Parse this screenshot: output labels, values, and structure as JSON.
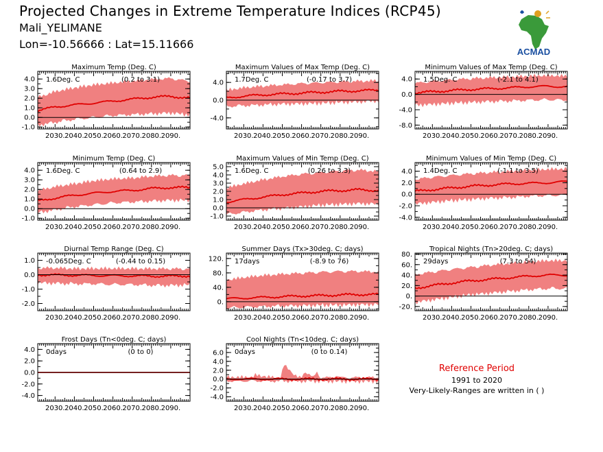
{
  "header": {
    "title": "Projected Changes in Extreme Temperature Indices (RCP45)",
    "region": "Mali_YELIMANE",
    "coords": "Lon=-10.56666 : Lat=15.11666",
    "logo_text": "ACMAD"
  },
  "reference": {
    "title": "Reference Period",
    "years": "1991 to 2020",
    "note": "Very-Likely-Ranges are written in ( )"
  },
  "colors": {
    "band": "#f08080",
    "line": "#e00000",
    "zero": "#000000",
    "logo_blue": "#1a4fa0",
    "logo_green": "#3a9a3a",
    "logo_gold": "#e0a020"
  },
  "chart_data": [
    {
      "type": "area",
      "title": "Maximum Temp (Deg. C)",
      "mean_label": "1.6Deg. C",
      "range_label": "(0.2 to 3.1)",
      "x_range": [
        2021,
        2100
      ],
      "x_ticks": [
        "2030.",
        "2040.",
        "2050.",
        "2060.",
        "2070.",
        "2080.",
        "2090."
      ],
      "ylim": [
        -1.2,
        4.8
      ],
      "y_ticks": [
        4.0,
        3.0,
        2.0,
        1.0,
        0.0,
        -1.0
      ],
      "y_tick_labels": [
        "4.0",
        "3.0",
        "2.0",
        "1.0",
        "0.0",
        "-1.0"
      ],
      "series": [
        {
          "x": [
            2021,
            2030,
            2040,
            2050,
            2060,
            2070,
            2080,
            2090,
            2100
          ],
          "values": [
            0.7,
            1.1,
            1.3,
            1.5,
            1.7,
            1.9,
            2.1,
            2.2,
            2.0
          ]
        },
        {
          "x": [
            2021,
            2030,
            2040,
            2050,
            2060,
            2070,
            2080,
            2090,
            2100
          ],
          "values": [
            -0.6,
            -0.3,
            0.0,
            0.2,
            0.4,
            0.5,
            0.6,
            0.7,
            0.5
          ]
        },
        {
          "x": [
            2021,
            2030,
            2040,
            2050,
            2060,
            2070,
            2080,
            2090,
            2100
          ],
          "values": [
            1.9,
            2.5,
            2.9,
            3.2,
            3.4,
            3.6,
            3.8,
            3.9,
            3.6
          ]
        }
      ]
    },
    {
      "type": "area",
      "title": "Maximum Values of Max Temp (Deg. C)",
      "mean_label": "1.7Deg. C",
      "range_label": "(-0.17 to 3.7)",
      "x_range": [
        2021,
        2100
      ],
      "x_ticks": [
        "2030.",
        "2040.",
        "2050.",
        "2060.",
        "2070.",
        "2080.",
        "2090."
      ],
      "ylim": [
        -6.5,
        6.5
      ],
      "y_ticks": [
        4.0,
        0.0,
        -4.0
      ],
      "y_tick_labels": [
        "4.0",
        "0.0",
        "-4.0"
      ],
      "series": [
        {
          "x": [
            2021,
            2030,
            2040,
            2050,
            2060,
            2070,
            2080,
            2090,
            2100
          ],
          "values": [
            0.5,
            0.9,
            1.2,
            1.4,
            1.6,
            1.8,
            2.0,
            2.1,
            2.3
          ]
        },
        {
          "x": [
            2021,
            2030,
            2040,
            2050,
            2060,
            2070,
            2080,
            2090,
            2100
          ],
          "values": [
            -1.0,
            -0.8,
            -0.6,
            -0.4,
            -0.3,
            -0.2,
            0.0,
            0.1,
            0.3
          ]
        },
        {
          "x": [
            2021,
            2030,
            2040,
            2050,
            2060,
            2070,
            2080,
            2090,
            2100
          ],
          "values": [
            1.8,
            2.4,
            2.8,
            3.1,
            3.4,
            3.6,
            3.8,
            3.9,
            4.0
          ]
        }
      ]
    },
    {
      "type": "area",
      "title": "Minimum Values of Max Temp (Deg. C)",
      "mean_label": "1.5Deg. C",
      "range_label": "(-2.1 to 4.1)",
      "x_range": [
        2021,
        2100
      ],
      "x_ticks": [
        "2030.",
        "2040.",
        "2050.",
        "2060.",
        "2070.",
        "2080.",
        "2090."
      ],
      "ylim": [
        -9.0,
        6.0
      ],
      "y_ticks": [
        4.0,
        0.0,
        -4.0,
        -8.0
      ],
      "y_tick_labels": [
        "4.0",
        "0.0",
        "-4.0",
        "-8.0"
      ],
      "series": [
        {
          "x": [
            2021,
            2030,
            2040,
            2050,
            2060,
            2070,
            2080,
            2090,
            2100
          ],
          "values": [
            0.4,
            0.7,
            1.0,
            1.3,
            1.5,
            1.7,
            2.0,
            2.1,
            2.0
          ]
        },
        {
          "x": [
            2021,
            2030,
            2040,
            2050,
            2060,
            2070,
            2080,
            2090,
            2100
          ],
          "values": [
            -2.2,
            -2.0,
            -1.7,
            -1.5,
            -1.3,
            -1.2,
            -1.0,
            -0.9,
            -1.0
          ]
        },
        {
          "x": [
            2021,
            2030,
            2040,
            2050,
            2060,
            2070,
            2080,
            2090,
            2100
          ],
          "values": [
            2.5,
            3.0,
            3.4,
            3.7,
            3.9,
            4.1,
            4.3,
            4.4,
            4.3
          ]
        }
      ]
    },
    {
      "type": "area",
      "title": "Minimum Temp (Deg. C)",
      "mean_label": "1.6Deg. C",
      "range_label": "(0.64 to 2.9)",
      "x_range": [
        2021,
        2100
      ],
      "x_ticks": [
        "2030.",
        "2040.",
        "2050.",
        "2060.",
        "2070.",
        "2080.",
        "2090."
      ],
      "ylim": [
        -1.2,
        4.8
      ],
      "y_ticks": [
        4.0,
        3.0,
        2.0,
        1.0,
        0.0,
        -1.0
      ],
      "y_tick_labels": [
        "4.0",
        "3.0",
        "2.0",
        "1.0",
        "0.0",
        "-1.0"
      ],
      "series": [
        {
          "x": [
            2021,
            2030,
            2040,
            2050,
            2060,
            2070,
            2080,
            2090,
            2100
          ],
          "values": [
            0.8,
            1.1,
            1.4,
            1.6,
            1.8,
            1.9,
            2.1,
            2.2,
            2.2
          ]
        },
        {
          "x": [
            2021,
            2030,
            2040,
            2050,
            2060,
            2070,
            2080,
            2090,
            2100
          ],
          "values": [
            -0.2,
            0.1,
            0.4,
            0.6,
            0.8,
            0.9,
            1.0,
            1.1,
            1.1
          ]
        },
        {
          "x": [
            2021,
            2030,
            2040,
            2050,
            2060,
            2070,
            2080,
            2090,
            2100
          ],
          "values": [
            1.7,
            2.1,
            2.4,
            2.7,
            2.9,
            3.0,
            3.2,
            3.3,
            3.3
          ]
        }
      ]
    },
    {
      "type": "area",
      "title": "Maximum Values of Min Temp (Deg. C)",
      "mean_label": "1.6Deg. C",
      "range_label": "(0.26 to 3.3)",
      "x_range": [
        2021,
        2100
      ],
      "x_ticks": [
        "2030.",
        "2040.",
        "2050.",
        "2060.",
        "2070.",
        "2080.",
        "2090."
      ],
      "ylim": [
        -1.5,
        5.5
      ],
      "y_ticks": [
        5.0,
        4.0,
        3.0,
        2.0,
        1.0,
        0.0,
        -1.0
      ],
      "y_tick_labels": [
        "5.0",
        "4.0",
        "3.0",
        "2.0",
        "1.0",
        "0.0",
        "-1.0"
      ],
      "series": [
        {
          "x": [
            2021,
            2030,
            2040,
            2050,
            2060,
            2070,
            2080,
            2090,
            2100
          ],
          "values": [
            0.7,
            1.0,
            1.3,
            1.6,
            1.8,
            2.0,
            2.1,
            2.2,
            2.1
          ]
        },
        {
          "x": [
            2021,
            2030,
            2040,
            2050,
            2060,
            2070,
            2080,
            2090,
            2100
          ],
          "values": [
            -0.6,
            -0.3,
            0.0,
            0.2,
            0.4,
            0.6,
            0.7,
            0.8,
            0.7
          ]
        },
        {
          "x": [
            2021,
            2030,
            2040,
            2050,
            2060,
            2070,
            2080,
            2090,
            2100
          ],
          "values": [
            2.2,
            2.7,
            3.2,
            3.6,
            3.9,
            4.1,
            4.3,
            4.4,
            4.2
          ]
        }
      ]
    },
    {
      "type": "area",
      "title": "Minimum Values of Min Temp (Deg. C)",
      "mean_label": "1.4Deg. C",
      "range_label": "(-1.1 to 3.5)",
      "x_range": [
        2021,
        2100
      ],
      "x_ticks": [
        "2030.",
        "2040.",
        "2050.",
        "2060.",
        "2070.",
        "2080.",
        "2090."
      ],
      "ylim": [
        -4.5,
        5.5
      ],
      "y_ticks": [
        4.0,
        2.0,
        0.0,
        -2.0,
        -4.0
      ],
      "y_tick_labels": [
        "4.0",
        "2.0",
        "0.0",
        "-2.0",
        "-4.0"
      ],
      "series": [
        {
          "x": [
            2021,
            2030,
            2040,
            2050,
            2060,
            2070,
            2080,
            2090,
            2100
          ],
          "values": [
            0.5,
            0.8,
            1.1,
            1.4,
            1.6,
            1.8,
            1.9,
            2.0,
            2.2
          ]
        },
        {
          "x": [
            2021,
            2030,
            2040,
            2050,
            2060,
            2070,
            2080,
            2090,
            2100
          ],
          "values": [
            -1.3,
            -1.0,
            -0.7,
            -0.5,
            -0.3,
            -0.2,
            0.0,
            0.1,
            0.2
          ]
        },
        {
          "x": [
            2021,
            2030,
            2040,
            2050,
            2060,
            2070,
            2080,
            2090,
            2100
          ],
          "values": [
            2.3,
            2.7,
            3.0,
            3.3,
            3.5,
            3.7,
            3.9,
            4.0,
            4.1
          ]
        }
      ]
    },
    {
      "type": "area",
      "title": "Diurnal Temp Range (Deg. C)",
      "mean_label": "-0.065Deg. C",
      "range_label": "(-0.44 to 0.15)",
      "x_range": [
        2021,
        2100
      ],
      "x_ticks": [
        "2030.",
        "2040.",
        "2050.",
        "2060.",
        "2070.",
        "2080.",
        "2090."
      ],
      "ylim": [
        -2.5,
        1.5
      ],
      "y_ticks": [
        1.0,
        0.0,
        -1.0,
        -2.0
      ],
      "y_tick_labels": [
        "1.0",
        "0.0",
        "-1.0",
        "-2.0"
      ],
      "series": [
        {
          "x": [
            2021,
            2030,
            2040,
            2050,
            2060,
            2070,
            2080,
            2090,
            2100
          ],
          "values": [
            0.0,
            -0.02,
            -0.04,
            -0.05,
            -0.07,
            -0.08,
            -0.1,
            -0.1,
            -0.08
          ]
        },
        {
          "x": [
            2021,
            2030,
            2040,
            2050,
            2060,
            2070,
            2080,
            2090,
            2100
          ],
          "values": [
            -0.4,
            -0.45,
            -0.5,
            -0.5,
            -0.55,
            -0.55,
            -0.6,
            -0.6,
            -0.55
          ]
        },
        {
          "x": [
            2021,
            2030,
            2040,
            2050,
            2060,
            2070,
            2080,
            2090,
            2100
          ],
          "values": [
            0.35,
            0.35,
            0.3,
            0.3,
            0.3,
            0.3,
            0.3,
            0.3,
            0.3
          ]
        }
      ]
    },
    {
      "type": "area",
      "title": "Summer Days (Tx>30deg. C; days)",
      "mean_label": "17days",
      "range_label": "(-8.9 to 76)",
      "x_range": [
        2021,
        2100
      ],
      "x_ticks": [
        "2030.",
        "2040.",
        "2050.",
        "2060.",
        "2070.",
        "2080.",
        "2090."
      ],
      "ylim": [
        -25,
        135
      ],
      "y_ticks": [
        120,
        80,
        40,
        0
      ],
      "y_tick_labels": [
        "120.",
        "80.",
        "40.",
        "0."
      ],
      "series": [
        {
          "x": [
            2021,
            2030,
            2040,
            2050,
            2060,
            2070,
            2080,
            2090,
            2100
          ],
          "values": [
            8,
            10,
            12,
            14,
            16,
            17,
            19,
            20,
            20
          ]
        },
        {
          "x": [
            2021,
            2030,
            2040,
            2050,
            2060,
            2070,
            2080,
            2090,
            2100
          ],
          "values": [
            -12,
            -10,
            -8,
            -6,
            -5,
            -4,
            -3,
            -2,
            -2
          ]
        },
        {
          "x": [
            2021,
            2030,
            2040,
            2050,
            2060,
            2070,
            2080,
            2090,
            2100
          ],
          "values": [
            55,
            62,
            68,
            72,
            75,
            78,
            80,
            80,
            78
          ]
        }
      ]
    },
    {
      "type": "area",
      "title": "Tropical Nights (Tn>20deg. C; days)",
      "mean_label": "29days",
      "range_label": "(7.3 to 54)",
      "x_range": [
        2021,
        2100
      ],
      "x_ticks": [
        "2030.",
        "2040.",
        "2050.",
        "2060.",
        "2070.",
        "2080.",
        "2090."
      ],
      "ylim": [
        -28,
        82
      ],
      "y_ticks": [
        80,
        60,
        40,
        20,
        0,
        -20
      ],
      "y_tick_labels": [
        "80.",
        "60.",
        "40.",
        "20.",
        "0.",
        "-20."
      ],
      "series": [
        {
          "x": [
            2021,
            2030,
            2040,
            2050,
            2060,
            2070,
            2080,
            2090,
            2100
          ],
          "values": [
            15,
            20,
            25,
            29,
            32,
            35,
            38,
            40,
            40
          ]
        },
        {
          "x": [
            2021,
            2030,
            2040,
            2050,
            2060,
            2070,
            2080,
            2090,
            2100
          ],
          "values": [
            -8,
            -3,
            2,
            7,
            10,
            13,
            16,
            18,
            18
          ]
        },
        {
          "x": [
            2021,
            2030,
            2040,
            2050,
            2060,
            2070,
            2080,
            2090,
            2100
          ],
          "values": [
            38,
            43,
            48,
            52,
            56,
            59,
            62,
            64,
            64
          ]
        }
      ]
    },
    {
      "type": "area",
      "title": "Frost Days (Tn<0deg. C; days)",
      "mean_label": "0days",
      "range_label": "(0 to 0)",
      "x_range": [
        2021,
        2100
      ],
      "x_ticks": [
        "2030.",
        "2040.",
        "2050.",
        "2060.",
        "2070.",
        "2080.",
        "2090."
      ],
      "ylim": [
        -5.0,
        5.0
      ],
      "y_ticks": [
        4.0,
        2.0,
        0.0,
        -2.0,
        -4.0
      ],
      "y_tick_labels": [
        "4.0",
        "2.0",
        "0.0",
        "-2.0",
        "-4.0"
      ],
      "series": [
        {
          "x": [
            2021,
            2100
          ],
          "values": [
            0,
            0
          ]
        },
        {
          "x": [
            2021,
            2100
          ],
          "values": [
            0,
            0
          ]
        },
        {
          "x": [
            2021,
            2100
          ],
          "values": [
            0,
            0
          ]
        }
      ]
    },
    {
      "type": "area",
      "title": "Cool Nights (Tn<10deg. C; days)",
      "mean_label": "0days",
      "range_label": "(0 to 0.14)",
      "x_range": [
        2021,
        2100
      ],
      "x_ticks": [
        "2030.",
        "2040.",
        "2050.",
        "2060.",
        "2070.",
        "2080.",
        "2090."
      ],
      "ylim": [
        -5.0,
        8.0
      ],
      "y_ticks": [
        6.0,
        4.0,
        2.0,
        0.0,
        -2.0,
        -4.0
      ],
      "y_tick_labels": [
        "6.0",
        "4.0",
        "2.0",
        "0.0",
        "-2.0",
        "-4.0"
      ],
      "series": [
        {
          "x": [
            2021,
            2100
          ],
          "values": [
            0,
            0
          ]
        },
        {
          "x": [
            2021,
            2100
          ],
          "values": [
            0,
            0
          ]
        },
        {
          "x": [
            2021,
            2030,
            2034,
            2036,
            2045,
            2049,
            2051,
            2058,
            2060,
            2062,
            2066,
            2068,
            2070,
            2076,
            2078,
            2080,
            2100
          ],
          "values": [
            0,
            0,
            0,
            0.5,
            0,
            0,
            2.8,
            0,
            0,
            1.4,
            0,
            1.2,
            0,
            0,
            0.5,
            0,
            0
          ]
        }
      ]
    }
  ]
}
